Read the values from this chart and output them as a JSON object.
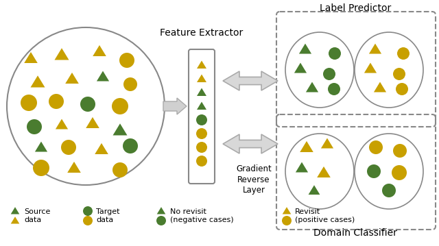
{
  "bg_color": "#ffffff",
  "dark_green": "#4a7c2f",
  "gold": "#c8a000",
  "dark_gold": "#b8920a",
  "title_label_predictor": "Label Predictor",
  "title_feature_extractor": "Feature Extractor",
  "title_domain_classifier": "Domain Classifier",
  "title_gradient": "Gradient\nReverse\nLayer"
}
